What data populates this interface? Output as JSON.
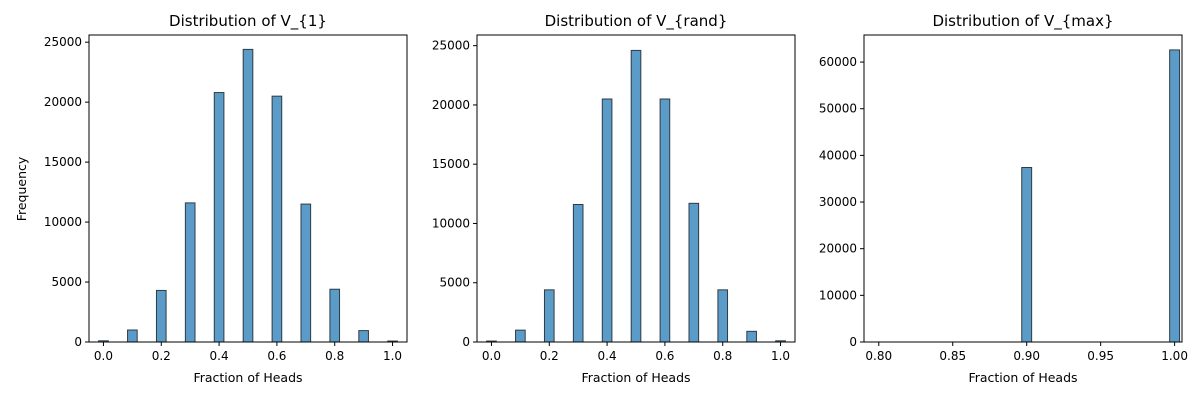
{
  "figure": {
    "shared_ylabel": "Frequency"
  },
  "chart_data": [
    {
      "type": "bar",
      "title": "Distribution of V_{1}",
      "xlabel": "Fraction of Heads",
      "ylabel": "Frequency",
      "xlim": [
        -0.05,
        1.05
      ],
      "ylim": [
        0,
        25600
      ],
      "xticks": [
        0.0,
        0.2,
        0.4,
        0.6,
        0.8,
        1.0
      ],
      "xtick_labels": [
        "0.0",
        "0.2",
        "0.4",
        "0.6",
        "0.8",
        "1.0"
      ],
      "yticks": [
        0,
        5000,
        10000,
        15000,
        20000,
        25000
      ],
      "ytick_labels": [
        "0",
        "5000",
        "10000",
        "15000",
        "20000",
        "25000"
      ],
      "bin_width": 0.0333,
      "color": "#5b9bc7",
      "edgecolor": "#2f3b45",
      "bins": [
        {
          "x": 0.0,
          "count": 100
        },
        {
          "x": 0.1,
          "count": 1000
        },
        {
          "x": 0.2,
          "count": 4300
        },
        {
          "x": 0.3,
          "count": 11600
        },
        {
          "x": 0.4,
          "count": 20800
        },
        {
          "x": 0.5,
          "count": 24400
        },
        {
          "x": 0.6,
          "count": 20500
        },
        {
          "x": 0.7,
          "count": 11500
        },
        {
          "x": 0.8,
          "count": 4400
        },
        {
          "x": 0.9,
          "count": 950
        },
        {
          "x": 1.0,
          "count": 80
        }
      ]
    },
    {
      "type": "bar",
      "title": "Distribution of V_{rand}",
      "xlabel": "Fraction of Heads",
      "ylabel": "",
      "xlim": [
        -0.05,
        1.05
      ],
      "ylim": [
        0,
        25900
      ],
      "xticks": [
        0.0,
        0.2,
        0.4,
        0.6,
        0.8,
        1.0
      ],
      "xtick_labels": [
        "0.0",
        "0.2",
        "0.4",
        "0.6",
        "0.8",
        "1.0"
      ],
      "yticks": [
        0,
        5000,
        10000,
        15000,
        20000,
        25000
      ],
      "ytick_labels": [
        "0",
        "5000",
        "10000",
        "15000",
        "20000",
        "25000"
      ],
      "bin_width": 0.0333,
      "color": "#5b9bc7",
      "edgecolor": "#2f3b45",
      "bins": [
        {
          "x": 0.0,
          "count": 80
        },
        {
          "x": 0.1,
          "count": 1000
        },
        {
          "x": 0.2,
          "count": 4400
        },
        {
          "x": 0.3,
          "count": 11600
        },
        {
          "x": 0.4,
          "count": 20500
        },
        {
          "x": 0.5,
          "count": 24600
        },
        {
          "x": 0.6,
          "count": 20500
        },
        {
          "x": 0.7,
          "count": 11700
        },
        {
          "x": 0.8,
          "count": 4400
        },
        {
          "x": 0.9,
          "count": 900
        },
        {
          "x": 1.0,
          "count": 100
        }
      ]
    },
    {
      "type": "bar",
      "title": "Distribution of V_{max}",
      "xlabel": "Fraction of Heads",
      "ylabel": "",
      "xlim": [
        0.79,
        1.005
      ],
      "ylim": [
        0,
        65800
      ],
      "xticks": [
        0.8,
        0.85,
        0.9,
        0.95,
        1.0
      ],
      "xtick_labels": [
        "0.80",
        "0.85",
        "0.90",
        "0.95",
        "1.00"
      ],
      "yticks": [
        0,
        10000,
        20000,
        30000,
        40000,
        50000,
        60000
      ],
      "ytick_labels": [
        "0",
        "10000",
        "20000",
        "30000",
        "40000",
        "50000",
        "60000"
      ],
      "bin_width": 0.0067,
      "color": "#5b9bc7",
      "edgecolor": "#2f3b45",
      "bins": [
        {
          "x": 0.9,
          "count": 37400
        },
        {
          "x": 1.0,
          "count": 62600
        }
      ]
    }
  ]
}
